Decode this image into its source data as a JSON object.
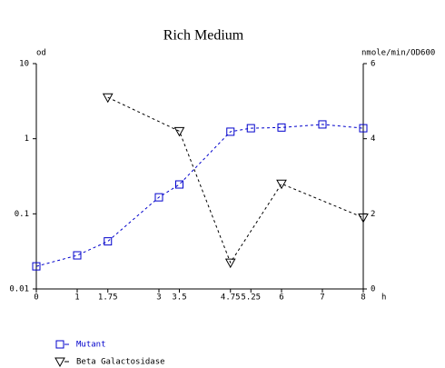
{
  "chart_data": {
    "type": "line",
    "title": "Rich Medium",
    "x_label": "h",
    "y_label": "od",
    "y2_label": "nmole/min/OD600",
    "xlim": [
      0,
      8
    ],
    "xticks": [
      0,
      1,
      1.75,
      3,
      3.5,
      4.75,
      5.25,
      6,
      7,
      8
    ],
    "ylim": [
      0.01,
      10
    ],
    "yticks": [
      0.01,
      0.1,
      1,
      10
    ],
    "yscale": "log",
    "y2lim": [
      0,
      6
    ],
    "y2ticks": [
      0,
      2,
      4,
      6
    ],
    "series": [
      {
        "name": "Mutant",
        "color": "#0000cc",
        "marker": "square",
        "x": [
          0,
          1,
          1.75,
          3,
          3.5,
          4.75,
          5.25,
          6,
          7,
          8
        ],
        "values": [
          0.02,
          0.028,
          0.043,
          0.166,
          0.246,
          1.24,
          1.38,
          1.41,
          1.55,
          1.38
        ]
      },
      {
        "name": "Beta Galactosidase",
        "color": "#000000",
        "marker": "triangle-down",
        "axis": "y2",
        "x": [
          1.75,
          3.5,
          4.75,
          6,
          8
        ],
        "values": [
          5.1,
          4.2,
          0.7,
          2.8,
          1.9
        ]
      }
    ]
  }
}
